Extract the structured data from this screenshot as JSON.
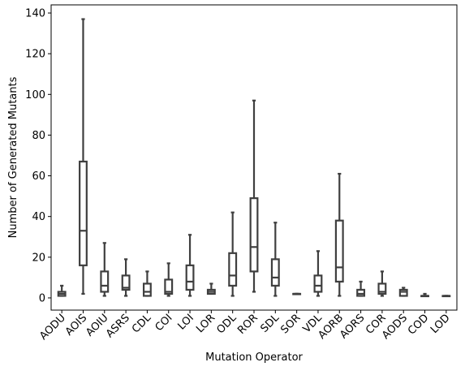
{
  "chart_data": {
    "type": "box",
    "xlabel": "Mutation Operator",
    "ylabel": "Number of Generated Mutants",
    "ylim": [
      -6,
      144
    ],
    "yticks": [
      0,
      20,
      40,
      60,
      80,
      100,
      120,
      140
    ],
    "grid": false,
    "box_color": "#3f3f3f",
    "categories": [
      "AODU",
      "AOIS",
      "AOIU",
      "ASRS",
      "CDL",
      "COI",
      "LOI",
      "LOR",
      "ODL",
      "ROR",
      "SDL",
      "SOR",
      "VDL",
      "AORB",
      "AORS",
      "COR",
      "AODS",
      "COD",
      "LOD"
    ],
    "boxes": [
      {
        "min": 1,
        "q1": 1,
        "median": 2,
        "q3": 3,
        "max": 6
      },
      {
        "min": 2,
        "q1": 16,
        "median": 33,
        "q3": 67,
        "max": 137
      },
      {
        "min": 1,
        "q1": 3,
        "median": 6,
        "q3": 13,
        "max": 27
      },
      {
        "min": 1,
        "q1": 4,
        "median": 5,
        "q3": 11,
        "max": 19
      },
      {
        "min": 1,
        "q1": 1,
        "median": 3,
        "q3": 7,
        "max": 13
      },
      {
        "min": 1,
        "q1": 2,
        "median": 3,
        "q3": 9,
        "max": 17
      },
      {
        "min": 1,
        "q1": 4,
        "median": 8,
        "q3": 16,
        "max": 31
      },
      {
        "min": 2,
        "q1": 2,
        "median": 3,
        "q3": 4,
        "max": 7
      },
      {
        "min": 1,
        "q1": 6,
        "median": 11,
        "q3": 22,
        "max": 42
      },
      {
        "min": 3,
        "q1": 13,
        "median": 25,
        "q3": 49,
        "max": 97
      },
      {
        "min": 1,
        "q1": 6,
        "median": 10,
        "q3": 19,
        "max": 37
      },
      {
        "min": 2,
        "q1": 2,
        "median": 2,
        "q3": 2,
        "max": 2
      },
      {
        "min": 1,
        "q1": 3,
        "median": 6,
        "q3": 11,
        "max": 23
      },
      {
        "min": 1,
        "q1": 8,
        "median": 15,
        "q3": 38,
        "max": 61
      },
      {
        "min": 1,
        "q1": 1,
        "median": 2,
        "q3": 4,
        "max": 8
      },
      {
        "min": 1,
        "q1": 2,
        "median": 3,
        "q3": 7,
        "max": 13
      },
      {
        "min": 1,
        "q1": 1,
        "median": 3,
        "q3": 4,
        "max": 5
      },
      {
        "min": 1,
        "q1": 1,
        "median": 1,
        "q3": 1,
        "max": 2
      },
      {
        "min": 1,
        "q1": 1,
        "median": 1,
        "q3": 1,
        "max": 1
      }
    ]
  }
}
